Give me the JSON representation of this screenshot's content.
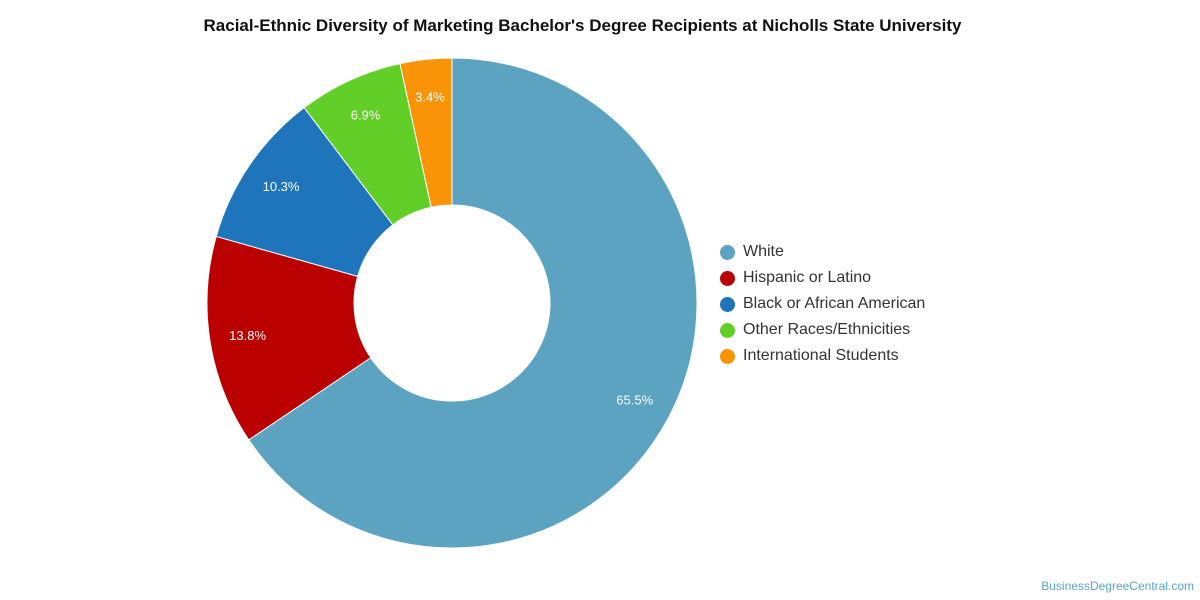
{
  "chart_data": {
    "type": "pie",
    "title": "Racial-Ethnic Diversity of Marketing Bachelor's Degree Recipients at Nicholls State University",
    "legend_position": "right",
    "slices": [
      {
        "label": "White",
        "value": 65.5,
        "value_label": "65.5%",
        "color": "#5ba3c0"
      },
      {
        "label": "Hispanic or Latino",
        "value": 13.8,
        "value_label": "13.8%",
        "color": "#bb0000"
      },
      {
        "label": "Black or African American",
        "value": 10.3,
        "value_label": "10.3%",
        "color": "#1f75bb"
      },
      {
        "label": "Other Races/Ethnicities",
        "value": 6.9,
        "value_label": "6.9%",
        "color": "#62cf28"
      },
      {
        "label": "International Students",
        "value": 3.4,
        "value_label": "3.4%",
        "color": "#f89406"
      }
    ]
  },
  "watermark": "BusinessDegreeCentral.com"
}
